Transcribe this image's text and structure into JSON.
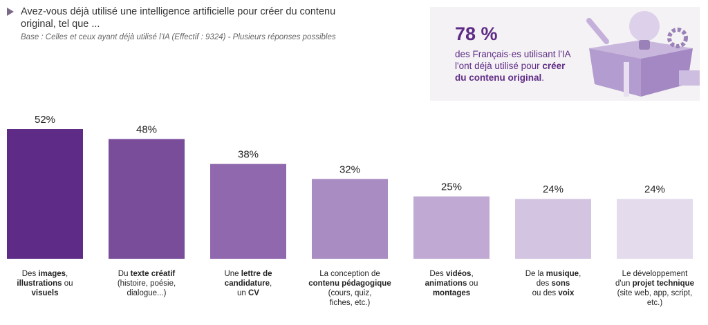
{
  "header": {
    "question": "Avez-vous déjà utilisé une intelligence artificielle pour créer du contenu original, tel que ...",
    "base": "Base : Celles et ceux ayant déjà utilisé l'IA (Effectif : 9324) - Plusieurs réponses possibles"
  },
  "callout": {
    "value": "78 %",
    "text": "des Français·es utilisant l'IA l'ont déjà utilisé pour ",
    "bold": "créer du contenu original",
    "end": "."
  },
  "chart_data": {
    "type": "bar",
    "categories": [
      [
        [
          {
            "text": "Des "
          },
          {
            "text": "images",
            "bold": true
          },
          {
            "text": ","
          }
        ],
        [
          {
            "text": "illustrations",
            "bold": true
          },
          {
            "text": " ou"
          }
        ],
        [
          {
            "text": "visuels",
            "bold": true
          }
        ]
      ],
      [
        [
          {
            "text": "Du "
          },
          {
            "text": "texte créatif",
            "bold": true
          }
        ],
        [
          {
            "text": "(histoire, poésie,"
          }
        ],
        [
          {
            "text": "dialogue...)"
          }
        ]
      ],
      [
        [
          {
            "text": "Une "
          },
          {
            "text": "lettre de",
            "bold": true
          }
        ],
        [
          {
            "text": "candidature",
            "bold": true
          },
          {
            "text": ","
          }
        ],
        [
          {
            "text": "un "
          },
          {
            "text": "CV",
            "bold": true
          }
        ]
      ],
      [
        [
          {
            "text": "La conception de"
          }
        ],
        [
          {
            "text": "contenu pédagogique",
            "bold": true
          }
        ],
        [
          {
            "text": "(cours, quiz,"
          }
        ],
        [
          {
            "text": "fiches, etc.)"
          }
        ]
      ],
      [
        [
          {
            "text": "Des "
          },
          {
            "text": "vidéos",
            "bold": true
          },
          {
            "text": ","
          }
        ],
        [
          {
            "text": "animations",
            "bold": true
          },
          {
            "text": " ou"
          }
        ],
        [
          {
            "text": "montages",
            "bold": true
          }
        ]
      ],
      [
        [
          {
            "text": "De la "
          },
          {
            "text": "musique",
            "bold": true
          },
          {
            "text": ","
          }
        ],
        [
          {
            "text": "des "
          },
          {
            "text": "sons",
            "bold": true
          }
        ],
        [
          {
            "text": "ou des "
          },
          {
            "text": "voix",
            "bold": true
          }
        ]
      ],
      [
        [
          {
            "text": "Le développement"
          }
        ],
        [
          {
            "text": "d'un "
          },
          {
            "text": "projet technique",
            "bold": true
          }
        ],
        [
          {
            "text": "(site web, app, script,"
          }
        ],
        [
          {
            "text": "etc.)"
          }
        ]
      ]
    ],
    "values": [
      52,
      48,
      38,
      32,
      25,
      24,
      24
    ],
    "value_labels": [
      "52%",
      "48%",
      "38%",
      "32%",
      "25%",
      "24%",
      "24%"
    ],
    "colors": [
      "#5e2b86",
      "#7a4d9b",
      "#9068ad",
      "#a98cc2",
      "#c0aad4",
      "#d3c5e2",
      "#e4dbed"
    ],
    "ylim": [
      0,
      100
    ]
  }
}
